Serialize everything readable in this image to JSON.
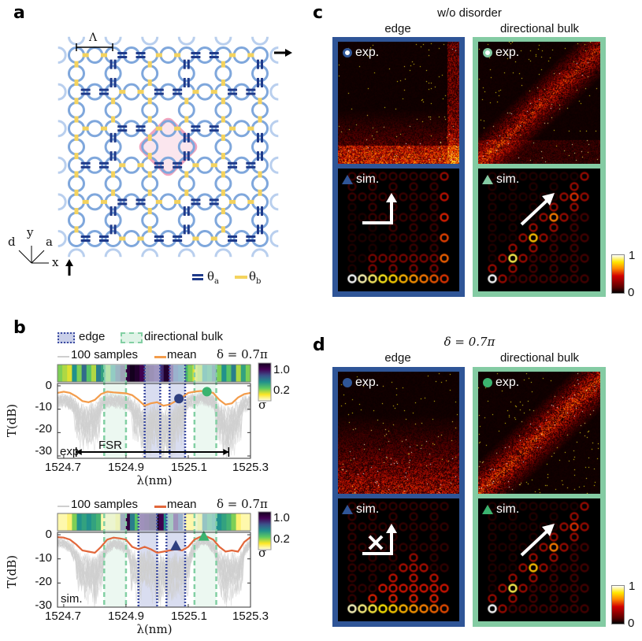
{
  "panels": {
    "a": {
      "letter": "a",
      "lattice_label": "Λ",
      "axes": {
        "d": "d",
        "y": "y",
        "a": "a",
        "x": "x"
      },
      "legend": {
        "theta_a": "θ",
        "theta_a_sub": "a",
        "theta_b": "θ",
        "theta_b_sub": "b"
      },
      "grid_size": 11,
      "colors": {
        "ring": "#7fa7dc",
        "ring_faint": "#b9cfee",
        "theta_a": "#1f3a8a",
        "theta_b": "#f4d35e",
        "plaquette": "#f2a3bd"
      }
    },
    "b": {
      "letter": "b",
      "legend_top": {
        "edge": "edge",
        "bulk": "directional bulk"
      },
      "colors": {
        "edge": "#3a4aa0",
        "edge_fill": "#c9cfe9",
        "bulk": "#82cfa3",
        "bulk_fill": "#dff3e7",
        "samples": "#cfcfcf",
        "mean_exp": "#f39c4b",
        "mean_sim": "#e2673b",
        "edge_marker": "#2e3f7f",
        "bulk_marker": "#3bb36f"
      }
    },
    "c": {
      "letter": "c",
      "title": "w/o disorder",
      "col_edge": "edge",
      "col_bulk": "directional bulk",
      "exp_label": "exp.",
      "sim_label": "sim.",
      "colorbar": {
        "max": "1",
        "min": "0"
      }
    },
    "d": {
      "letter": "d",
      "title": "δ = 0.7π",
      "col_edge": "edge",
      "col_bulk": "directional bulk",
      "exp_label": "exp.",
      "sim_label": "sim.",
      "colorbar": {
        "max": "1",
        "min": "0"
      }
    },
    "frame_colors": {
      "edge": "#2f5597",
      "bulk": "#84cba3"
    }
  },
  "chart_data": [
    {
      "type": "line",
      "name": "experiment",
      "legend": {
        "samples": "100 samples",
        "mean": "mean",
        "delta": "δ = 0.7π"
      },
      "xlabel": "λ(nm)",
      "ylabel": "T(dB)",
      "xlim": [
        1524.68,
        1525.3
      ],
      "ylim": [
        -31,
        1
      ],
      "xticks": [
        "1524.7",
        "1524.9",
        "1525.1",
        "1525.3"
      ],
      "xtick_values": [
        1524.7,
        1524.9,
        1525.1,
        1525.3
      ],
      "yticks": [
        "0",
        "-10",
        "-20",
        "-30"
      ],
      "ytick_values": [
        0,
        -10,
        -20,
        -30
      ],
      "corner_label": "exp",
      "fsr_label": "FSR",
      "fsr_range": [
        1524.74,
        1525.23
      ],
      "edge_bands": [
        [
          1524.96,
          1525.01
        ],
        [
          1525.04,
          1525.09
        ]
      ],
      "bulk_bands": [
        [
          1524.83,
          1524.9
        ],
        [
          1525.12,
          1525.19
        ]
      ],
      "mean": {
        "x": [
          1524.68,
          1524.7,
          1524.72,
          1524.74,
          1524.76,
          1524.78,
          1524.8,
          1524.82,
          1524.84,
          1524.86,
          1524.88,
          1524.9,
          1524.92,
          1524.94,
          1524.96,
          1524.98,
          1525.0,
          1525.02,
          1525.04,
          1525.06,
          1525.08,
          1525.1,
          1525.12,
          1525.14,
          1525.16,
          1525.18,
          1525.2,
          1525.22,
          1525.24,
          1525.26,
          1525.28,
          1525.3
        ],
        "y": [
          -3,
          -2.5,
          -3,
          -4.5,
          -6.5,
          -7,
          -6,
          -3.5,
          -2.5,
          -2.8,
          -3,
          -3.2,
          -4,
          -6,
          -8.5,
          -7.5,
          -7,
          -8.5,
          -8,
          -6.5,
          -5,
          -3,
          -2.5,
          -2.2,
          -2.5,
          -3,
          -6,
          -8,
          -7.5,
          -5,
          -3.5,
          -3
        ]
      },
      "markers": [
        {
          "kind": "circle",
          "band": "edge",
          "x": 1525.07,
          "y": -5.5
        },
        {
          "kind": "circle",
          "band": "bulk",
          "x": 1525.16,
          "y": -2.5
        }
      ],
      "sigma_colorbar": {
        "label": "σ",
        "max": "1.0",
        "min": "0.2"
      },
      "sigma_strip": [
        0.3,
        0.25,
        0.2,
        0.5,
        0.3,
        0.6,
        0.35,
        0.25,
        0.55,
        0.45,
        0.3,
        0.5,
        0.65,
        0.75,
        0.9,
        1.0,
        0.95,
        0.85,
        1.0,
        0.9,
        0.8,
        0.75,
        0.95,
        0.85,
        0.6,
        0.5,
        0.4,
        0.3,
        0.2,
        0.25,
        0.5,
        0.45,
        0.6,
        0.3,
        0.5,
        0.35,
        0.55,
        0.25,
        0.45,
        0.3
      ]
    },
    {
      "type": "line",
      "name": "simulation",
      "legend": {
        "samples": "100 samples",
        "mean": "mean",
        "delta": "δ = 0.7π"
      },
      "xlabel": "λ(nm)",
      "ylabel": "T(dB)",
      "xlim": [
        1524.68,
        1525.3
      ],
      "ylim": [
        -30,
        1
      ],
      "xticks": [
        "1524.7",
        "1524.9",
        "1525.1",
        "1525.3"
      ],
      "xtick_values": [
        1524.7,
        1524.9,
        1525.1,
        1525.3
      ],
      "yticks": [
        "0",
        "-10",
        "-20",
        "-30"
      ],
      "ytick_values": [
        0,
        -10,
        -20,
        -30
      ],
      "corner_label": "sim.",
      "edge_bands": [
        [
          1524.94,
          1525.0
        ],
        [
          1525.03,
          1525.09
        ]
      ],
      "bulk_bands": [
        [
          1524.83,
          1524.9
        ],
        [
          1525.12,
          1525.19
        ]
      ],
      "mean": {
        "x": [
          1524.68,
          1524.7,
          1524.72,
          1524.74,
          1524.76,
          1524.78,
          1524.8,
          1524.82,
          1524.84,
          1524.86,
          1524.88,
          1524.9,
          1524.92,
          1524.94,
          1524.96,
          1524.98,
          1525.0,
          1525.02,
          1525.04,
          1525.06,
          1525.08,
          1525.1,
          1525.12,
          1525.14,
          1525.16,
          1525.18,
          1525.2,
          1525.22,
          1525.24,
          1525.26,
          1525.28,
          1525.3
        ],
        "y": [
          -1,
          -1.2,
          -2,
          -4,
          -6.5,
          -7,
          -7.5,
          -5,
          -2,
          -1.2,
          -1.5,
          -2,
          -5,
          -6,
          -5,
          -6,
          -7.5,
          -7,
          -6.5,
          -6,
          -6.5,
          -5,
          -2,
          -0.8,
          -0.8,
          -2,
          -5,
          -7,
          -6.5,
          -7,
          -3,
          -1
        ]
      },
      "markers": [
        {
          "kind": "triangle",
          "band": "edge",
          "x": 1525.06,
          "y": -4.5
        },
        {
          "kind": "triangle",
          "band": "bulk",
          "x": 1525.15,
          "y": -0.5
        }
      ],
      "sigma_colorbar": {
        "label": "σ",
        "max": "1.0",
        "min": "0.2"
      },
      "sigma_strip": [
        0.05,
        0.05,
        0.1,
        0.3,
        0.5,
        0.45,
        0.5,
        0.45,
        0.4,
        0.05,
        0.05,
        0.05,
        0.1,
        0.7,
        0.9,
        0.55,
        0.35,
        0.85,
        0.9,
        1.0,
        1.0,
        0.85,
        0.5,
        0.35,
        0.85,
        0.6,
        0.05,
        0.05,
        0.05,
        0.1,
        0.55,
        0.45,
        0.5,
        0.5,
        0.45,
        0.4,
        0.3,
        0.1,
        0.05,
        0.05
      ]
    }
  ]
}
